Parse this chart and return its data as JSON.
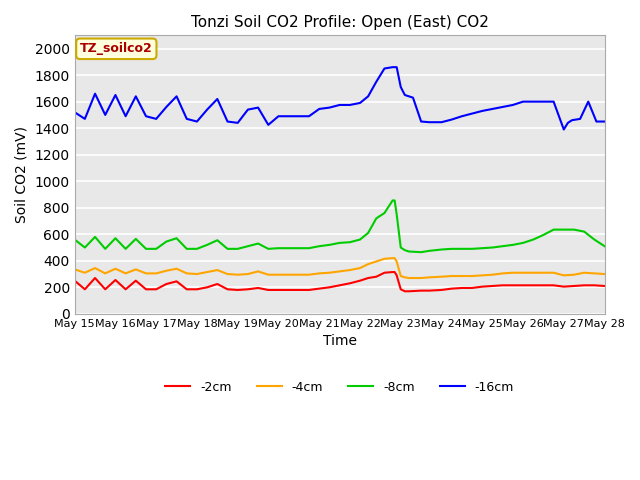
{
  "title": "Tonzi Soil CO2 Profile: Open (East) CO2",
  "xlabel": "Time",
  "ylabel": "Soil CO2 (mV)",
  "ylim": [
    0,
    2100
  ],
  "yticks": [
    0,
    200,
    400,
    600,
    800,
    1000,
    1200,
    1400,
    1600,
    1800,
    2000
  ],
  "bg_color": "#e8e8e8",
  "watermark_text": "TZ_soilco2",
  "watermark_bg": "#ffffdd",
  "watermark_border": "#ccaa00",
  "watermark_color": "#aa0000",
  "series": {
    "16cm": {
      "color": "#0000ff",
      "label": "-16cm",
      "x": [
        0.0,
        0.25,
        0.5,
        0.75,
        1.0,
        1.25,
        1.5,
        1.75,
        2.0,
        2.25,
        2.5,
        2.75,
        3.0,
        3.25,
        3.5,
        3.75,
        4.0,
        4.25,
        4.5,
        4.75,
        5.0,
        5.25,
        5.5,
        5.75,
        6.0,
        6.25,
        6.5,
        6.75,
        7.0,
        7.2,
        7.4,
        7.6,
        7.8,
        7.9,
        8.0,
        8.1,
        8.2,
        8.3,
        8.5,
        8.7,
        9.0,
        9.25,
        9.5,
        9.75,
        10.0,
        10.25,
        10.5,
        10.75,
        11.0,
        11.25,
        11.5,
        11.75,
        12.0,
        12.1,
        12.2,
        12.4,
        12.6,
        12.8,
        13.0
      ],
      "y": [
        1520,
        1470,
        1660,
        1500,
        1650,
        1490,
        1640,
        1490,
        1470,
        1560,
        1640,
        1470,
        1450,
        1540,
        1620,
        1450,
        1440,
        1540,
        1555,
        1425,
        1490,
        1490,
        1490,
        1490,
        1545,
        1555,
        1575,
        1575,
        1590,
        1640,
        1750,
        1850,
        1860,
        1860,
        1710,
        1650,
        1640,
        1630,
        1450,
        1445,
        1445,
        1465,
        1490,
        1510,
        1530,
        1545,
        1560,
        1575,
        1600,
        1600,
        1600,
        1600,
        1390,
        1440,
        1460,
        1470,
        1600,
        1450,
        1450
      ]
    },
    "8cm": {
      "color": "#00cc00",
      "label": "-8cm",
      "x": [
        0.0,
        0.25,
        0.5,
        0.75,
        1.0,
        1.25,
        1.5,
        1.75,
        2.0,
        2.25,
        2.5,
        2.75,
        3.0,
        3.25,
        3.5,
        3.75,
        4.0,
        4.25,
        4.5,
        4.75,
        5.0,
        5.25,
        5.5,
        5.75,
        6.0,
        6.25,
        6.5,
        6.75,
        7.0,
        7.2,
        7.4,
        7.6,
        7.8,
        7.85,
        7.9,
        8.0,
        8.1,
        8.2,
        8.5,
        8.7,
        9.0,
        9.25,
        9.5,
        9.75,
        10.0,
        10.25,
        10.5,
        10.75,
        11.0,
        11.25,
        11.5,
        11.75,
        12.0,
        12.25,
        12.5,
        12.75,
        13.0
      ],
      "y": [
        560,
        500,
        580,
        490,
        570,
        490,
        565,
        490,
        490,
        545,
        570,
        490,
        490,
        520,
        555,
        490,
        490,
        510,
        530,
        490,
        495,
        495,
        495,
        495,
        510,
        520,
        535,
        540,
        560,
        610,
        720,
        760,
        855,
        855,
        750,
        500,
        480,
        470,
        465,
        475,
        485,
        490,
        490,
        490,
        495,
        500,
        510,
        520,
        535,
        560,
        595,
        635,
        635,
        635,
        620,
        560,
        510
      ]
    },
    "4cm": {
      "color": "#ffa500",
      "label": "-4cm",
      "x": [
        0.0,
        0.25,
        0.5,
        0.75,
        1.0,
        1.25,
        1.5,
        1.75,
        2.0,
        2.25,
        2.5,
        2.75,
        3.0,
        3.25,
        3.5,
        3.75,
        4.0,
        4.25,
        4.5,
        4.75,
        5.0,
        5.25,
        5.5,
        5.75,
        6.0,
        6.25,
        6.5,
        6.75,
        7.0,
        7.2,
        7.4,
        7.6,
        7.8,
        7.85,
        7.9,
        8.0,
        8.1,
        8.2,
        8.5,
        8.7,
        9.0,
        9.25,
        9.5,
        9.75,
        10.0,
        10.25,
        10.5,
        10.75,
        11.0,
        11.25,
        11.5,
        11.75,
        12.0,
        12.25,
        12.5,
        12.75,
        13.0
      ],
      "y": [
        335,
        310,
        345,
        305,
        340,
        305,
        335,
        305,
        305,
        325,
        340,
        305,
        300,
        315,
        330,
        300,
        295,
        300,
        320,
        295,
        295,
        295,
        295,
        295,
        305,
        310,
        320,
        330,
        345,
        375,
        395,
        415,
        420,
        420,
        395,
        285,
        275,
        270,
        270,
        275,
        280,
        285,
        285,
        285,
        290,
        295,
        305,
        310,
        310,
        310,
        310,
        310,
        290,
        295,
        310,
        305,
        300
      ]
    },
    "2cm": {
      "color": "#ff0000",
      "label": "-2cm",
      "x": [
        0.0,
        0.25,
        0.5,
        0.75,
        1.0,
        1.25,
        1.5,
        1.75,
        2.0,
        2.25,
        2.5,
        2.75,
        3.0,
        3.25,
        3.5,
        3.75,
        4.0,
        4.25,
        4.5,
        4.75,
        5.0,
        5.25,
        5.5,
        5.75,
        6.0,
        6.25,
        6.5,
        6.75,
        7.0,
        7.2,
        7.4,
        7.6,
        7.8,
        7.85,
        7.9,
        8.0,
        8.1,
        8.2,
        8.5,
        8.7,
        9.0,
        9.25,
        9.5,
        9.75,
        10.0,
        10.25,
        10.5,
        10.75,
        11.0,
        11.25,
        11.5,
        11.75,
        12.0,
        12.25,
        12.5,
        12.75,
        13.0
      ],
      "y": [
        250,
        185,
        270,
        185,
        255,
        185,
        250,
        185,
        185,
        225,
        245,
        185,
        185,
        200,
        225,
        185,
        180,
        185,
        195,
        180,
        180,
        180,
        180,
        180,
        190,
        200,
        215,
        230,
        250,
        270,
        280,
        310,
        315,
        315,
        290,
        185,
        170,
        170,
        175,
        175,
        180,
        190,
        195,
        195,
        205,
        210,
        215,
        215,
        215,
        215,
        215,
        215,
        205,
        210,
        215,
        215,
        210
      ]
    }
  },
  "x_ticks": [
    0,
    1,
    2,
    3,
    4,
    5,
    6,
    7,
    8,
    9,
    10,
    11,
    12,
    13
  ],
  "x_tick_labels": [
    "May 15",
    "May 16",
    "May 17",
    "May 18",
    "May 19",
    "May 20",
    "May 21",
    "May 22",
    "May 23",
    "May 24",
    "May 25",
    "May 26",
    "May 27",
    "May 28"
  ]
}
